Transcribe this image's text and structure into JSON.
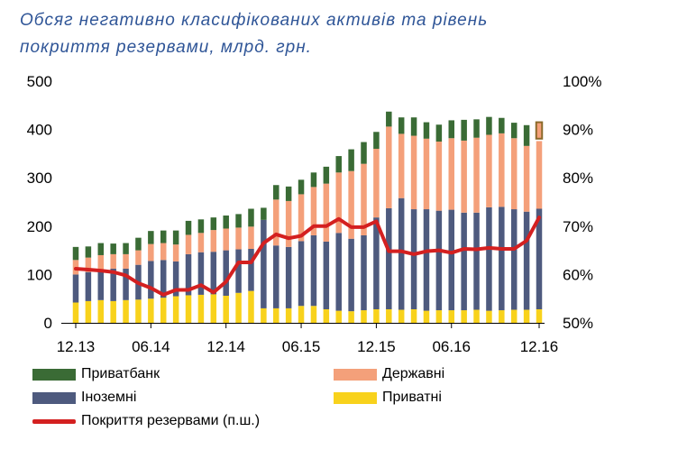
{
  "chart_data": {
    "type": "bar",
    "stacked": true,
    "title_line1": "Обсяг негативно класифікованих активів та рівень",
    "title_line2": "покриття резервами, млрд. грн.",
    "x_tick_labels": [
      "12.13",
      "06.14",
      "12.14",
      "06.15",
      "12.15",
      "06.16",
      "12.16"
    ],
    "left_axis": {
      "min": 0,
      "max": 500,
      "ticks": [
        "0",
        "100",
        "200",
        "300",
        "400",
        "500"
      ]
    },
    "right_axis": {
      "min": 50,
      "max": 100,
      "ticks": [
        "50%",
        "60%",
        "70%",
        "80%",
        "90%",
        "100%"
      ]
    },
    "colors": {
      "privatbank": "#3A6B35",
      "state": "#F4A07A",
      "foreign": "#4E5A7E",
      "private": "#F8D21C",
      "coverage": "#D42020",
      "highlight": "#8B6A2A"
    },
    "series_order": [
      "private",
      "foreign",
      "state",
      "privatbank"
    ],
    "series": [
      {
        "key": "private",
        "name": "Приватні",
        "values": [
          42,
          45,
          47,
          45,
          47,
          48,
          50,
          52,
          55,
          57,
          58,
          59,
          56,
          62,
          66,
          30,
          30,
          30,
          35,
          35,
          28,
          25,
          24,
          26,
          28,
          28,
          27,
          28,
          25,
          26,
          26,
          26,
          27,
          25,
          26,
          27,
          27,
          28
        ]
      },
      {
        "key": "foreign",
        "name": "Іноземні",
        "values": [
          58,
          60,
          63,
          67,
          65,
          72,
          78,
          78,
          72,
          85,
          88,
          88,
          94,
          90,
          87,
          183,
          130,
          127,
          134,
          146,
          140,
          161,
          150,
          155,
          190,
          209,
          231,
          207,
          210,
          206,
          208,
          202,
          201,
          214,
          214,
          208,
          203,
          208
        ]
      },
      {
        "key": "state",
        "name": "Державні",
        "values": [
          30,
          30,
          30,
          30,
          30,
          30,
          35,
          35,
          35,
          40,
          40,
          45,
          45,
          45,
          46,
          0,
          95,
          95,
          97,
          100,
          120,
          125,
          140,
          148,
          142,
          169,
          133,
          152,
          146,
          143,
          148,
          149,
          155,
          150,
          152,
          147,
          136,
          140
        ]
      },
      {
        "key": "privatbank",
        "name": "Приватбанк",
        "values": [
          27,
          23,
          25,
          22,
          23,
          26,
          27,
          26,
          29,
          29,
          28,
          26,
          27,
          28,
          37,
          25,
          30,
          30,
          30,
          30,
          35,
          34,
          45,
          45,
          35,
          31,
          34,
          38,
          34,
          35,
          37,
          43,
          38,
          37,
          32,
          32,
          43,
          0
        ]
      }
    ],
    "coverage": {
      "name": "Покриття резервами (п.ш.)",
      "values": [
        61.2,
        61,
        60.8,
        60.5,
        59.8,
        58.2,
        57.2,
        55.8,
        56.8,
        56.8,
        57.8,
        56.3,
        58.5,
        62.5,
        62.5,
        66.5,
        68.3,
        67.5,
        68,
        70,
        70,
        71.5,
        69.8,
        69.8,
        71,
        64.8,
        64.8,
        64.2,
        64.8,
        65,
        64.5,
        65.3,
        65.2,
        65.5,
        65.3,
        65.3,
        67,
        71.8
      ]
    },
    "highlight_last_top": {
      "bottom": 381,
      "top": 415
    },
    "legend": [
      {
        "key": "privatbank",
        "label": "Приватбанк"
      },
      {
        "key": "state",
        "label": "Державні"
      },
      {
        "key": "foreign",
        "label": "Іноземні"
      },
      {
        "key": "private",
        "label": "Приватні"
      },
      {
        "key": "coverage",
        "label": "Покриття резервами (п.ш.)"
      }
    ]
  }
}
